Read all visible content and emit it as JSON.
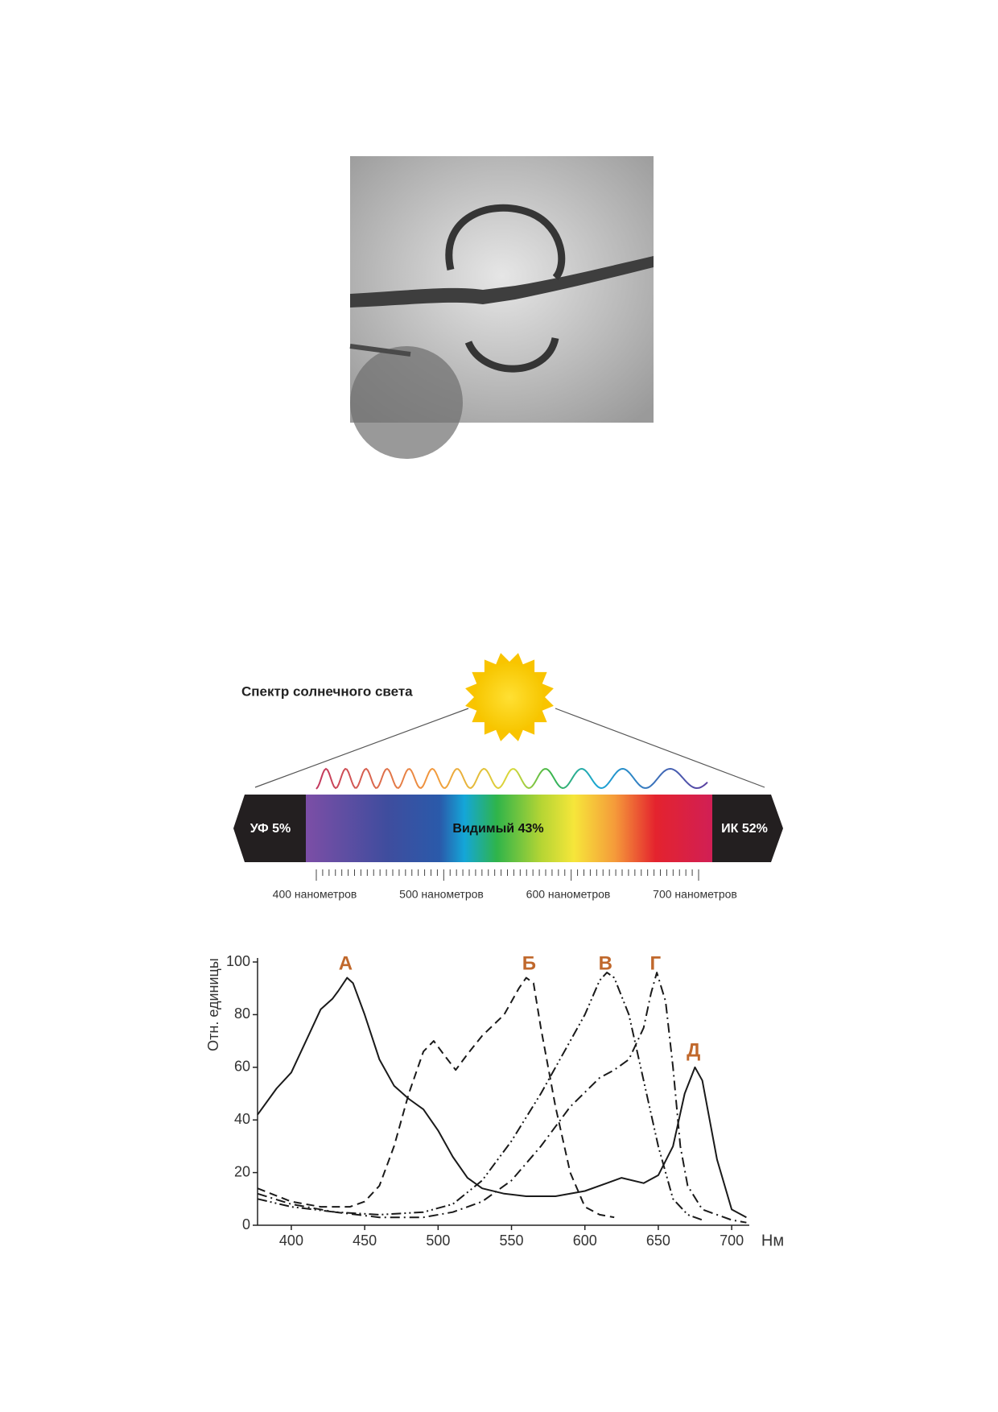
{
  "spectrum": {
    "title": "Спектр солнечного света",
    "uv": "УФ 5%",
    "visible": "Видимый 43%",
    "ir": "ИК 52%",
    "scale_labels": [
      "400 нанометров",
      "500 нанометров",
      "600 нанометров",
      "700 нанометров"
    ]
  },
  "chart_data": {
    "type": "line",
    "y_label": "Отн. единицы",
    "x_label": "Нм",
    "xlim": [
      377,
      712
    ],
    "ylim": [
      0,
      100
    ],
    "xticks": [
      400,
      450,
      500,
      550,
      600,
      650,
      700
    ],
    "yticks": [
      0,
      20,
      40,
      60,
      80,
      100
    ],
    "series": [
      {
        "color": "#1a1a1a",
        "dash": "solid",
        "x": [
          377,
          390,
          400,
          410,
          420,
          428,
          432,
          438,
          442,
          450,
          460,
          470,
          480,
          490,
          500,
          510,
          520,
          530,
          545,
          560,
          580,
          600,
          615,
          625,
          640,
          650,
          660,
          668,
          675,
          680,
          690,
          700,
          710
        ],
        "values": [
          42,
          52,
          58,
          70,
          82,
          86,
          89,
          94,
          92,
          80,
          63,
          53,
          48,
          44,
          36,
          26,
          18,
          14,
          12,
          11,
          11,
          13,
          16,
          18,
          16,
          19,
          30,
          50,
          60,
          55,
          25,
          6,
          3
        ]
      },
      {
        "color": "#1a1a1a",
        "dash": "dashed",
        "x": [
          377,
          400,
          420,
          440,
          450,
          460,
          470,
          480,
          490,
          497,
          505,
          512,
          520,
          530,
          545,
          555,
          560,
          565,
          570,
          580,
          590,
          600,
          610,
          620
        ],
        "values": [
          14,
          9,
          7,
          7,
          9,
          15,
          30,
          50,
          66,
          70,
          64,
          59,
          65,
          72,
          80,
          90,
          94,
          92,
          75,
          45,
          20,
          7,
          4,
          3
        ]
      },
      {
        "color": "#1a1a1a",
        "dash": "dashdotdot",
        "x": [
          377,
          400,
          430,
          460,
          490,
          510,
          530,
          550,
          570,
          590,
          600,
          610,
          615,
          620,
          630,
          640,
          650,
          660,
          670,
          680
        ],
        "values": [
          10,
          7,
          5,
          4,
          5,
          8,
          17,
          32,
          50,
          70,
          80,
          93,
          96,
          94,
          80,
          55,
          30,
          10,
          4,
          2
        ]
      },
      {
        "color": "#1a1a1a",
        "dash": "dashdot",
        "x": [
          377,
          400,
          430,
          460,
          490,
          510,
          530,
          550,
          570,
          590,
          610,
          620,
          630,
          640,
          645,
          649,
          655,
          660,
          665,
          670,
          680,
          700,
          710
        ],
        "values": [
          12,
          8,
          5,
          3,
          3,
          5,
          9,
          17,
          30,
          45,
          56,
          59,
          63,
          75,
          88,
          96,
          85,
          60,
          30,
          15,
          6,
          2,
          1
        ]
      }
    ],
    "annotations": [
      {
        "text": "А",
        "x": 437,
        "y": 99,
        "color": "#c0682c"
      },
      {
        "text": "Б",
        "x": 562,
        "y": 99,
        "color": "#c0682c"
      },
      {
        "text": "В",
        "x": 614,
        "y": 99,
        "color": "#c0682c"
      },
      {
        "text": "Г",
        "x": 648,
        "y": 99,
        "color": "#c0682c"
      },
      {
        "text": "Д",
        "x": 674,
        "y": 66,
        "color": "#c0682c"
      }
    ]
  }
}
